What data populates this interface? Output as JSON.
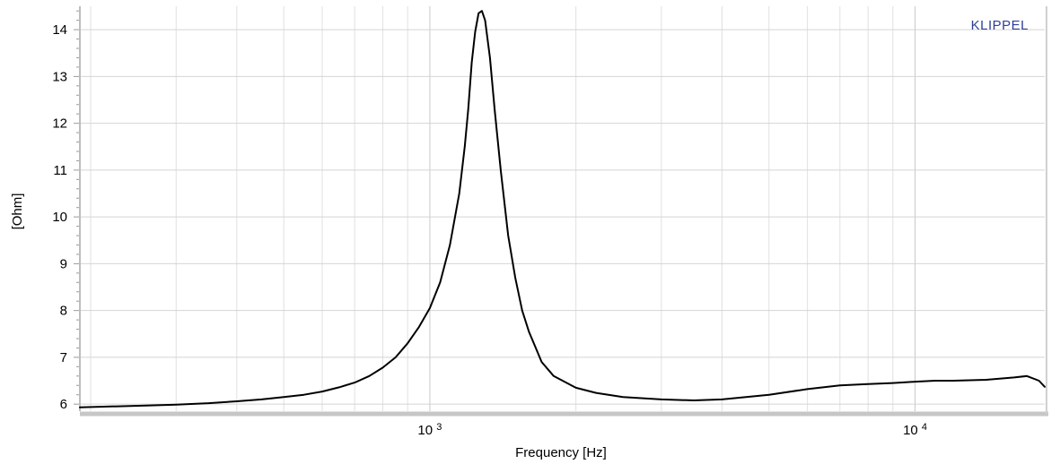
{
  "chart_data": {
    "type": "line",
    "title": "",
    "xlabel": "Frequency [Hz]",
    "ylabel": "[Ohm]",
    "xscale": "log",
    "xlim": [
      190,
      18500
    ],
    "ylim": [
      5.85,
      14.5
    ],
    "x_ticks": [
      {
        "value": 1000,
        "base": "10",
        "exp": "3"
      },
      {
        "value": 10000,
        "base": "10",
        "exp": "4"
      }
    ],
    "y_ticks": [
      6,
      7,
      8,
      9,
      10,
      11,
      12,
      13,
      14
    ],
    "grid": true,
    "brand": {
      "text": "KLIPPEL",
      "color": "#2e3f99"
    },
    "line_color": "#000000",
    "series": [
      {
        "x": [
          190,
          220,
          260,
          300,
          350,
          400,
          450,
          500,
          550,
          600,
          650,
          700,
          750,
          800,
          850,
          900,
          950,
          1000,
          1050,
          1100,
          1150,
          1180,
          1200,
          1220,
          1240,
          1260,
          1280,
          1300,
          1330,
          1360,
          1400,
          1450,
          1500,
          1550,
          1600,
          1700,
          1800,
          2000,
          2200,
          2500,
          3000,
          3500,
          4000,
          5000,
          6000,
          7000,
          8000,
          9000,
          10000,
          11000,
          12000,
          14000,
          16000,
          17000,
          18000,
          18500
        ],
        "y": [
          5.93,
          5.95,
          5.97,
          5.99,
          6.02,
          6.06,
          6.1,
          6.15,
          6.2,
          6.27,
          6.36,
          6.46,
          6.6,
          6.78,
          7.0,
          7.3,
          7.65,
          8.05,
          8.6,
          9.4,
          10.5,
          11.5,
          12.3,
          13.3,
          13.95,
          14.35,
          14.4,
          14.2,
          13.4,
          12.3,
          11.0,
          9.6,
          8.7,
          8.0,
          7.55,
          6.9,
          6.6,
          6.35,
          6.24,
          6.15,
          6.1,
          6.08,
          6.1,
          6.2,
          6.32,
          6.4,
          6.43,
          6.45,
          6.48,
          6.5,
          6.5,
          6.52,
          6.57,
          6.6,
          6.5,
          6.37
        ]
      }
    ]
  }
}
